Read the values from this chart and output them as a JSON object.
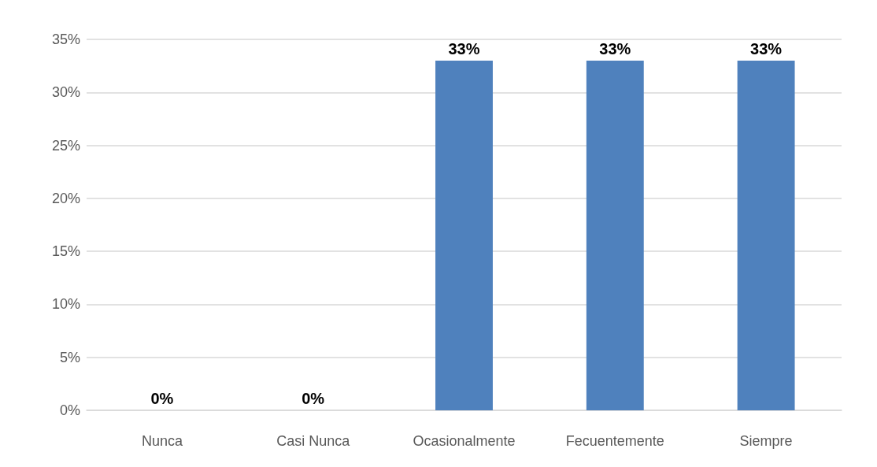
{
  "chart_data": {
    "type": "bar",
    "categories": [
      "Nunca",
      "Casi Nunca",
      "Ocasionalmente",
      "Fecuentemente",
      "Siempre"
    ],
    "values": [
      0,
      0,
      33,
      33,
      33
    ],
    "value_labels": [
      "0%",
      "0%",
      "33%",
      "33%",
      "33%"
    ],
    "color": "#4f81bd",
    "ylim": [
      0,
      35
    ],
    "yticks": [
      {
        "value": 0,
        "label": "0%"
      },
      {
        "value": 5,
        "label": "5%"
      },
      {
        "value": 10,
        "label": "10%"
      },
      {
        "value": 15,
        "label": "15%"
      },
      {
        "value": 20,
        "label": "20%"
      },
      {
        "value": 25,
        "label": "25%"
      },
      {
        "value": 30,
        "label": "30%"
      },
      {
        "value": 35,
        "label": "35%"
      }
    ],
    "grid": true
  }
}
